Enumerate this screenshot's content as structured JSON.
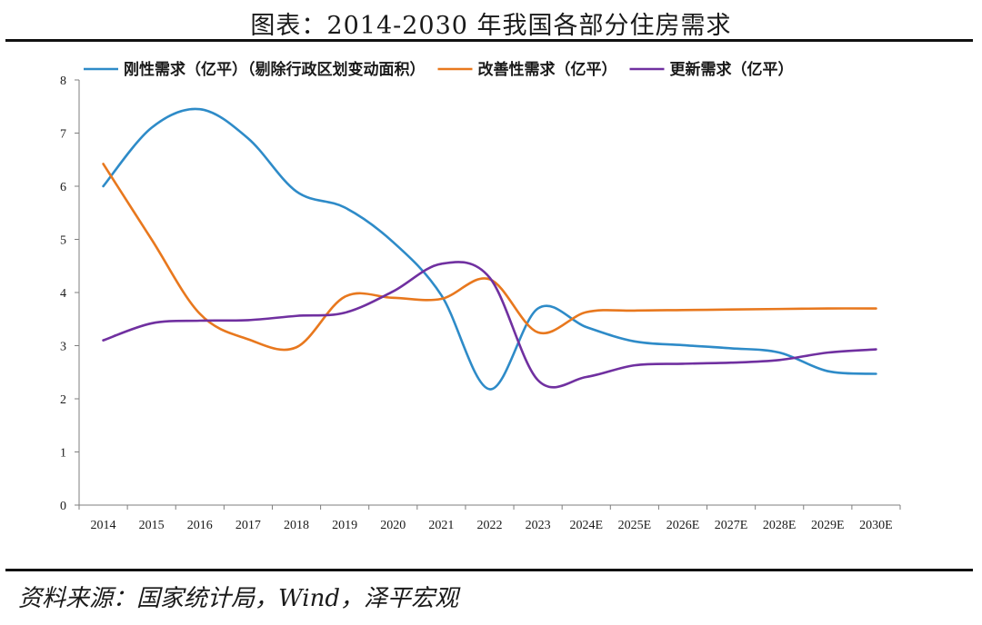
{
  "header": {
    "title": "图表：2014-2030 年我国各部分住房需求"
  },
  "footer": {
    "source": "资料来源：国家统计局，Wind，泽平宏观"
  },
  "chart_data": {
    "type": "line",
    "categories": [
      "2014",
      "2015",
      "2016",
      "2017",
      "2018",
      "2019",
      "2020",
      "2021",
      "2022",
      "2023",
      "2024E",
      "2025E",
      "2026E",
      "2027E",
      "2028E",
      "2029E",
      "2030E"
    ],
    "ylim": [
      0,
      8
    ],
    "yticks": [
      0,
      1,
      2,
      3,
      4,
      5,
      6,
      7,
      8
    ],
    "legend_position": "top",
    "grid": false,
    "smooth": true,
    "series": [
      {
        "name": "刚性需求（亿平）（剔除行政区划变动面积）",
        "color": "#2E8BC8",
        "values": [
          6.0,
          7.1,
          7.45,
          6.9,
          5.9,
          5.6,
          4.95,
          3.95,
          2.18,
          3.7,
          3.35,
          3.08,
          3.01,
          2.95,
          2.87,
          2.52,
          2.47
        ]
      },
      {
        "name": "改善性需求（亿平）",
        "color": "#E8781E",
        "values": [
          6.42,
          5.0,
          3.6,
          3.12,
          2.97,
          3.92,
          3.9,
          3.88,
          4.25,
          3.25,
          3.63,
          3.66,
          3.67,
          3.68,
          3.69,
          3.7,
          3.7
        ]
      },
      {
        "name": "更新需求（亿平）",
        "color": "#7030A0",
        "values": [
          3.1,
          3.42,
          3.47,
          3.48,
          3.56,
          3.62,
          4.02,
          4.54,
          4.28,
          2.35,
          2.41,
          2.63,
          2.66,
          2.68,
          2.73,
          2.87,
          2.93
        ]
      }
    ]
  }
}
